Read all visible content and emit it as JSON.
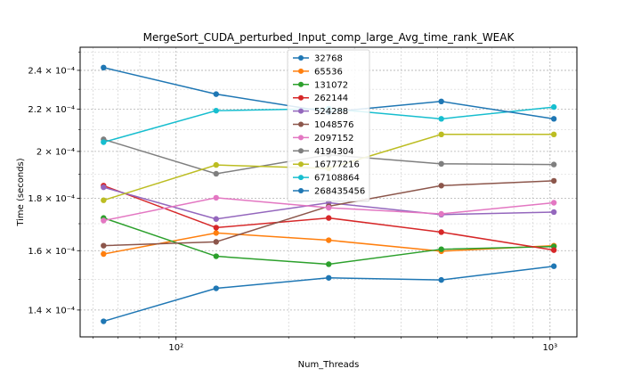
{
  "chart_data": {
    "type": "line",
    "title": "MergeSort_CUDA_perturbed_Input_comp_large_Avg_time_rank_WEAK",
    "xlabel": "Num_Threads",
    "ylabel": "Time (seconds)",
    "x_scale": "log",
    "y_scale": "log",
    "grid": true,
    "legend_placement": "top-center",
    "x": [
      64,
      128,
      256,
      512,
      1024
    ],
    "x_ticks": [
      {
        "value": 100,
        "label": "10²"
      },
      {
        "value": 1000,
        "label": "10³"
      }
    ],
    "y_ticks": [
      {
        "value": 0.00014,
        "label": "1.4 × 10⁻⁴"
      },
      {
        "value": 0.00016,
        "label": "1.6 × 10⁻⁴"
      },
      {
        "value": 0.00018,
        "label": "1.8 × 10⁻⁴"
      },
      {
        "value": 0.0002,
        "label": "2 × 10⁻⁴"
      },
      {
        "value": 0.00022,
        "label": "2.2 × 10⁻⁴"
      },
      {
        "value": 0.00024,
        "label": "2.4 × 10⁻⁴"
      }
    ],
    "series": [
      {
        "name": "32768",
        "color": "#1f77b4",
        "values": [
          0.0001365,
          0.000147,
          0.0001505,
          0.0001498,
          0.0001545
        ]
      },
      {
        "name": "65536",
        "color": "#ff7f0e",
        "values": [
          0.0001588,
          0.0001665,
          0.0001638,
          0.0001598,
          0.0001618
        ]
      },
      {
        "name": "131072",
        "color": "#2ca02c",
        "values": [
          0.0001722,
          0.000158,
          0.0001552,
          0.0001605,
          0.0001615
        ]
      },
      {
        "name": "262144",
        "color": "#d62728",
        "values": [
          0.0001852,
          0.0001685,
          0.0001722,
          0.0001668,
          0.0001602
        ]
      },
      {
        "name": "524288",
        "color": "#9467bd",
        "values": [
          0.0001845,
          0.0001718,
          0.0001782,
          0.0001735,
          0.0001745
        ]
      },
      {
        "name": "1048576",
        "color": "#8c564b",
        "values": [
          0.0001618,
          0.0001632,
          0.0001768,
          0.0001852,
          0.0001872
        ]
      },
      {
        "name": "2097152",
        "color": "#e377c2",
        "values": [
          0.0001712,
          0.0001802,
          0.0001762,
          0.0001738,
          0.0001782
        ]
      },
      {
        "name": "4194304",
        "color": "#7f7f7f",
        "values": [
          0.0002055,
          0.0001902,
          0.0001985,
          0.0001945,
          0.0001942
        ]
      },
      {
        "name": "16777216",
        "color": "#bcbd22",
        "values": [
          0.0001792,
          0.000194,
          0.0001925,
          0.0002078,
          0.0002078
        ]
      },
      {
        "name": "67108864",
        "color": "#17becf",
        "values": [
          0.0002042,
          0.0002192,
          0.0002202,
          0.0002152,
          0.000221
        ]
      },
      {
        "name": "268435456",
        "color": "#1f77b4",
        "values": [
          0.0002415,
          0.0002275,
          0.0002185,
          0.0002238,
          0.0002152
        ]
      }
    ]
  }
}
